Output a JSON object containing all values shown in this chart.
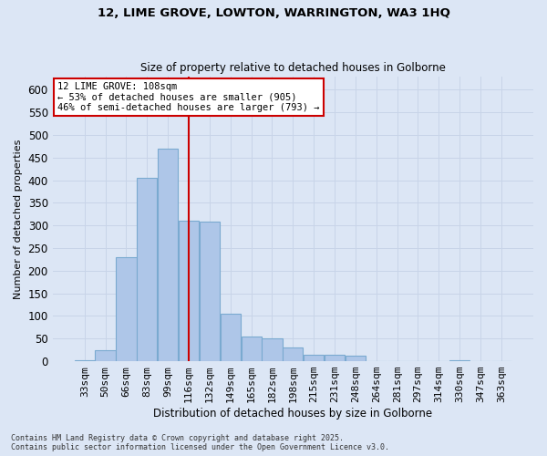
{
  "title1": "12, LIME GROVE, LOWTON, WARRINGTON, WA3 1HQ",
  "title2": "Size of property relative to detached houses in Golborne",
  "xlabel": "Distribution of detached houses by size in Golborne",
  "ylabel": "Number of detached properties",
  "categories": [
    "33sqm",
    "50sqm",
    "66sqm",
    "83sqm",
    "99sqm",
    "116sqm",
    "132sqm",
    "149sqm",
    "165sqm",
    "182sqm",
    "198sqm",
    "215sqm",
    "231sqm",
    "248sqm",
    "264sqm",
    "281sqm",
    "297sqm",
    "314sqm",
    "330sqm",
    "347sqm",
    "363sqm"
  ],
  "values": [
    2,
    25,
    230,
    405,
    470,
    310,
    308,
    105,
    55,
    50,
    30,
    15,
    15,
    12,
    1,
    0,
    0,
    0,
    2,
    0,
    1
  ],
  "bar_color": "#aec6e8",
  "bar_edgecolor": "#7aaad0",
  "background_color": "#dce6f5",
  "grid_color": "#c8d4e8",
  "vline_index": 5,
  "vline_color": "#cc0000",
  "annotation_line1": "12 LIME GROVE: 108sqm",
  "annotation_line2": "← 53% of detached houses are smaller (905)",
  "annotation_line3": "46% of semi-detached houses are larger (793) →",
  "annotation_box_color": "#cc0000",
  "footnote": "Contains HM Land Registry data © Crown copyright and database right 2025.\nContains public sector information licensed under the Open Government Licence v3.0.",
  "ylim": [
    0,
    630
  ],
  "yticks": [
    0,
    50,
    100,
    150,
    200,
    250,
    300,
    350,
    400,
    450,
    500,
    550,
    600
  ]
}
